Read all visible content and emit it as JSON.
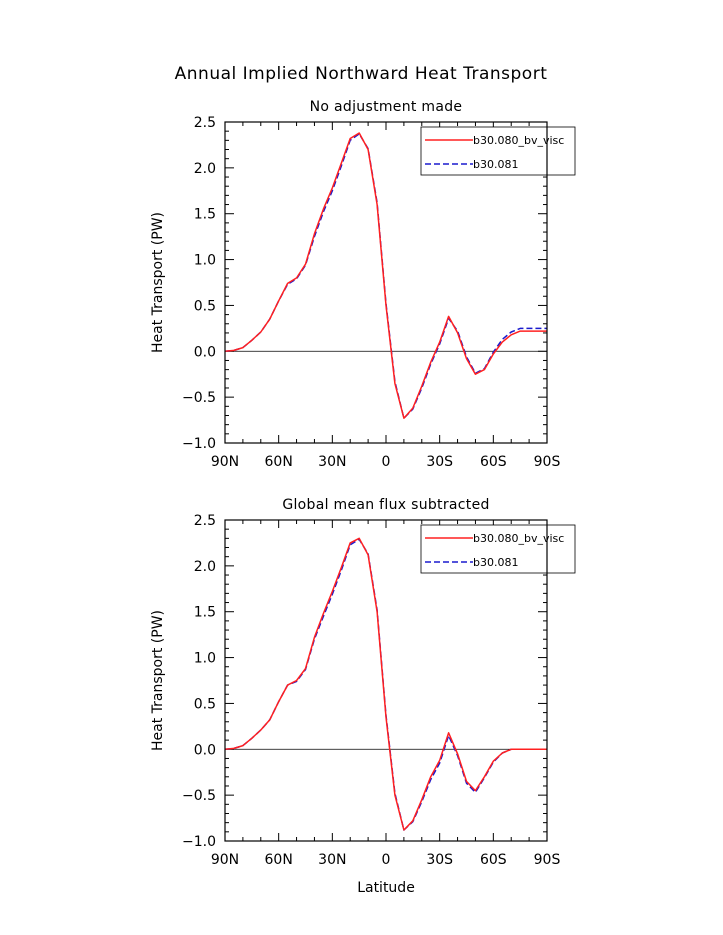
{
  "figure": {
    "title": "Annual Implied Northward Heat Transport"
  },
  "colors": {
    "series1": "#ff2020",
    "series2": "#1a1acd",
    "axis": "#000000"
  },
  "chart_data": [
    {
      "type": "line",
      "title": "No adjustment made",
      "xlabel": "",
      "ylabel": "Heat Transport (PW)",
      "xlim": [
        90,
        -90
      ],
      "ylim": [
        -1.0,
        2.5
      ],
      "xticks": [
        90,
        60,
        30,
        0,
        -30,
        -60,
        -90
      ],
      "xtick_labels": [
        "90N",
        "60N",
        "30N",
        "0",
        "30S",
        "60S",
        "90S"
      ],
      "yticks": [
        -1.0,
        -0.5,
        0.0,
        0.5,
        1.0,
        1.5,
        2.0,
        2.5
      ],
      "ytick_labels": [
        "−1.0",
        "−0.5",
        "0.0",
        "0.5",
        "1.0",
        "1.5",
        "2.0",
        "2.5"
      ],
      "legend_position": "top-right",
      "zero_line": true,
      "grid": false,
      "series": [
        {
          "name": "b30.080_bv_visc",
          "style": "solid",
          "color": "#ff2020",
          "x": [
            90,
            85,
            80,
            75,
            70,
            65,
            60,
            55,
            50,
            45,
            40,
            35,
            30,
            25,
            20,
            15,
            10,
            5,
            0,
            -5,
            -10,
            -15,
            -20,
            -25,
            -30,
            -35,
            -40,
            -45,
            -50,
            -55,
            -60,
            -65,
            -70,
            -75,
            -80,
            -85,
            -90
          ],
          "y": [
            0.0,
            0.01,
            0.04,
            0.12,
            0.21,
            0.35,
            0.55,
            0.74,
            0.8,
            0.95,
            1.28,
            1.55,
            1.78,
            2.05,
            2.32,
            2.38,
            2.2,
            1.6,
            0.5,
            -0.35,
            -0.73,
            -0.62,
            -0.38,
            -0.12,
            0.1,
            0.38,
            0.2,
            -0.08,
            -0.25,
            -0.2,
            -0.03,
            0.1,
            0.18,
            0.22,
            0.22,
            0.22,
            0.22
          ]
        },
        {
          "name": "b30.081",
          "style": "dashed",
          "color": "#1a1acd",
          "x": [
            90,
            85,
            80,
            75,
            70,
            65,
            60,
            55,
            50,
            45,
            40,
            35,
            30,
            25,
            20,
            15,
            10,
            5,
            0,
            -5,
            -10,
            -15,
            -20,
            -25,
            -30,
            -35,
            -40,
            -45,
            -50,
            -55,
            -60,
            -65,
            -70,
            -75,
            -80,
            -85,
            -90
          ],
          "y": [
            0.0,
            0.01,
            0.04,
            0.12,
            0.21,
            0.35,
            0.55,
            0.73,
            0.79,
            0.94,
            1.25,
            1.52,
            1.75,
            2.02,
            2.3,
            2.37,
            2.21,
            1.62,
            0.52,
            -0.33,
            -0.73,
            -0.63,
            -0.4,
            -0.14,
            0.08,
            0.36,
            0.22,
            -0.06,
            -0.24,
            -0.19,
            -0.01,
            0.13,
            0.21,
            0.25,
            0.25,
            0.25,
            0.25
          ]
        }
      ]
    },
    {
      "type": "line",
      "title": "Global mean flux subtracted",
      "xlabel": "Latitude",
      "ylabel": "Heat Transport (PW)",
      "xlim": [
        90,
        -90
      ],
      "ylim": [
        -1.0,
        2.5
      ],
      "xticks": [
        90,
        60,
        30,
        0,
        -30,
        -60,
        -90
      ],
      "xtick_labels": [
        "90N",
        "60N",
        "30N",
        "0",
        "30S",
        "60S",
        "90S"
      ],
      "yticks": [
        -1.0,
        -0.5,
        0.0,
        0.5,
        1.0,
        1.5,
        2.0,
        2.5
      ],
      "ytick_labels": [
        "−1.0",
        "−0.5",
        "0.0",
        "0.5",
        "1.0",
        "1.5",
        "2.0",
        "2.5"
      ],
      "legend_position": "top-right",
      "zero_line": true,
      "grid": false,
      "series": [
        {
          "name": "b30.080_bv_visc",
          "style": "solid",
          "color": "#ff2020",
          "x": [
            90,
            85,
            80,
            75,
            70,
            65,
            60,
            55,
            50,
            45,
            40,
            35,
            30,
            25,
            20,
            15,
            10,
            5,
            0,
            -5,
            -10,
            -15,
            -20,
            -25,
            -30,
            -35,
            -40,
            -45,
            -50,
            -55,
            -60,
            -65,
            -70,
            -75,
            -80,
            -85,
            -90
          ],
          "y": [
            0.0,
            0.01,
            0.04,
            0.12,
            0.21,
            0.32,
            0.52,
            0.7,
            0.75,
            0.88,
            1.22,
            1.48,
            1.72,
            1.98,
            2.25,
            2.3,
            2.12,
            1.5,
            0.35,
            -0.5,
            -0.88,
            -0.78,
            -0.55,
            -0.3,
            -0.12,
            0.18,
            -0.05,
            -0.35,
            -0.45,
            -0.3,
            -0.13,
            -0.04,
            0.0,
            0.0,
            0.0,
            0.0,
            0.0
          ]
        },
        {
          "name": "b30.081",
          "style": "dashed",
          "color": "#1a1acd",
          "x": [
            90,
            85,
            80,
            75,
            70,
            65,
            60,
            55,
            50,
            45,
            40,
            35,
            30,
            25,
            20,
            15,
            10,
            5,
            0,
            -5,
            -10,
            -15,
            -20,
            -25,
            -30,
            -35,
            -40,
            -45,
            -50,
            -55,
            -60,
            -65,
            -70,
            -75,
            -80,
            -85,
            -90
          ],
          "y": [
            0.0,
            0.01,
            0.04,
            0.12,
            0.21,
            0.32,
            0.52,
            0.7,
            0.74,
            0.87,
            1.2,
            1.45,
            1.69,
            1.95,
            2.23,
            2.29,
            2.13,
            1.52,
            0.37,
            -0.48,
            -0.88,
            -0.79,
            -0.57,
            -0.33,
            -0.15,
            0.15,
            -0.07,
            -0.37,
            -0.47,
            -0.31,
            -0.14,
            -0.04,
            0.0,
            0.0,
            0.0,
            0.0,
            0.0
          ]
        }
      ]
    }
  ]
}
